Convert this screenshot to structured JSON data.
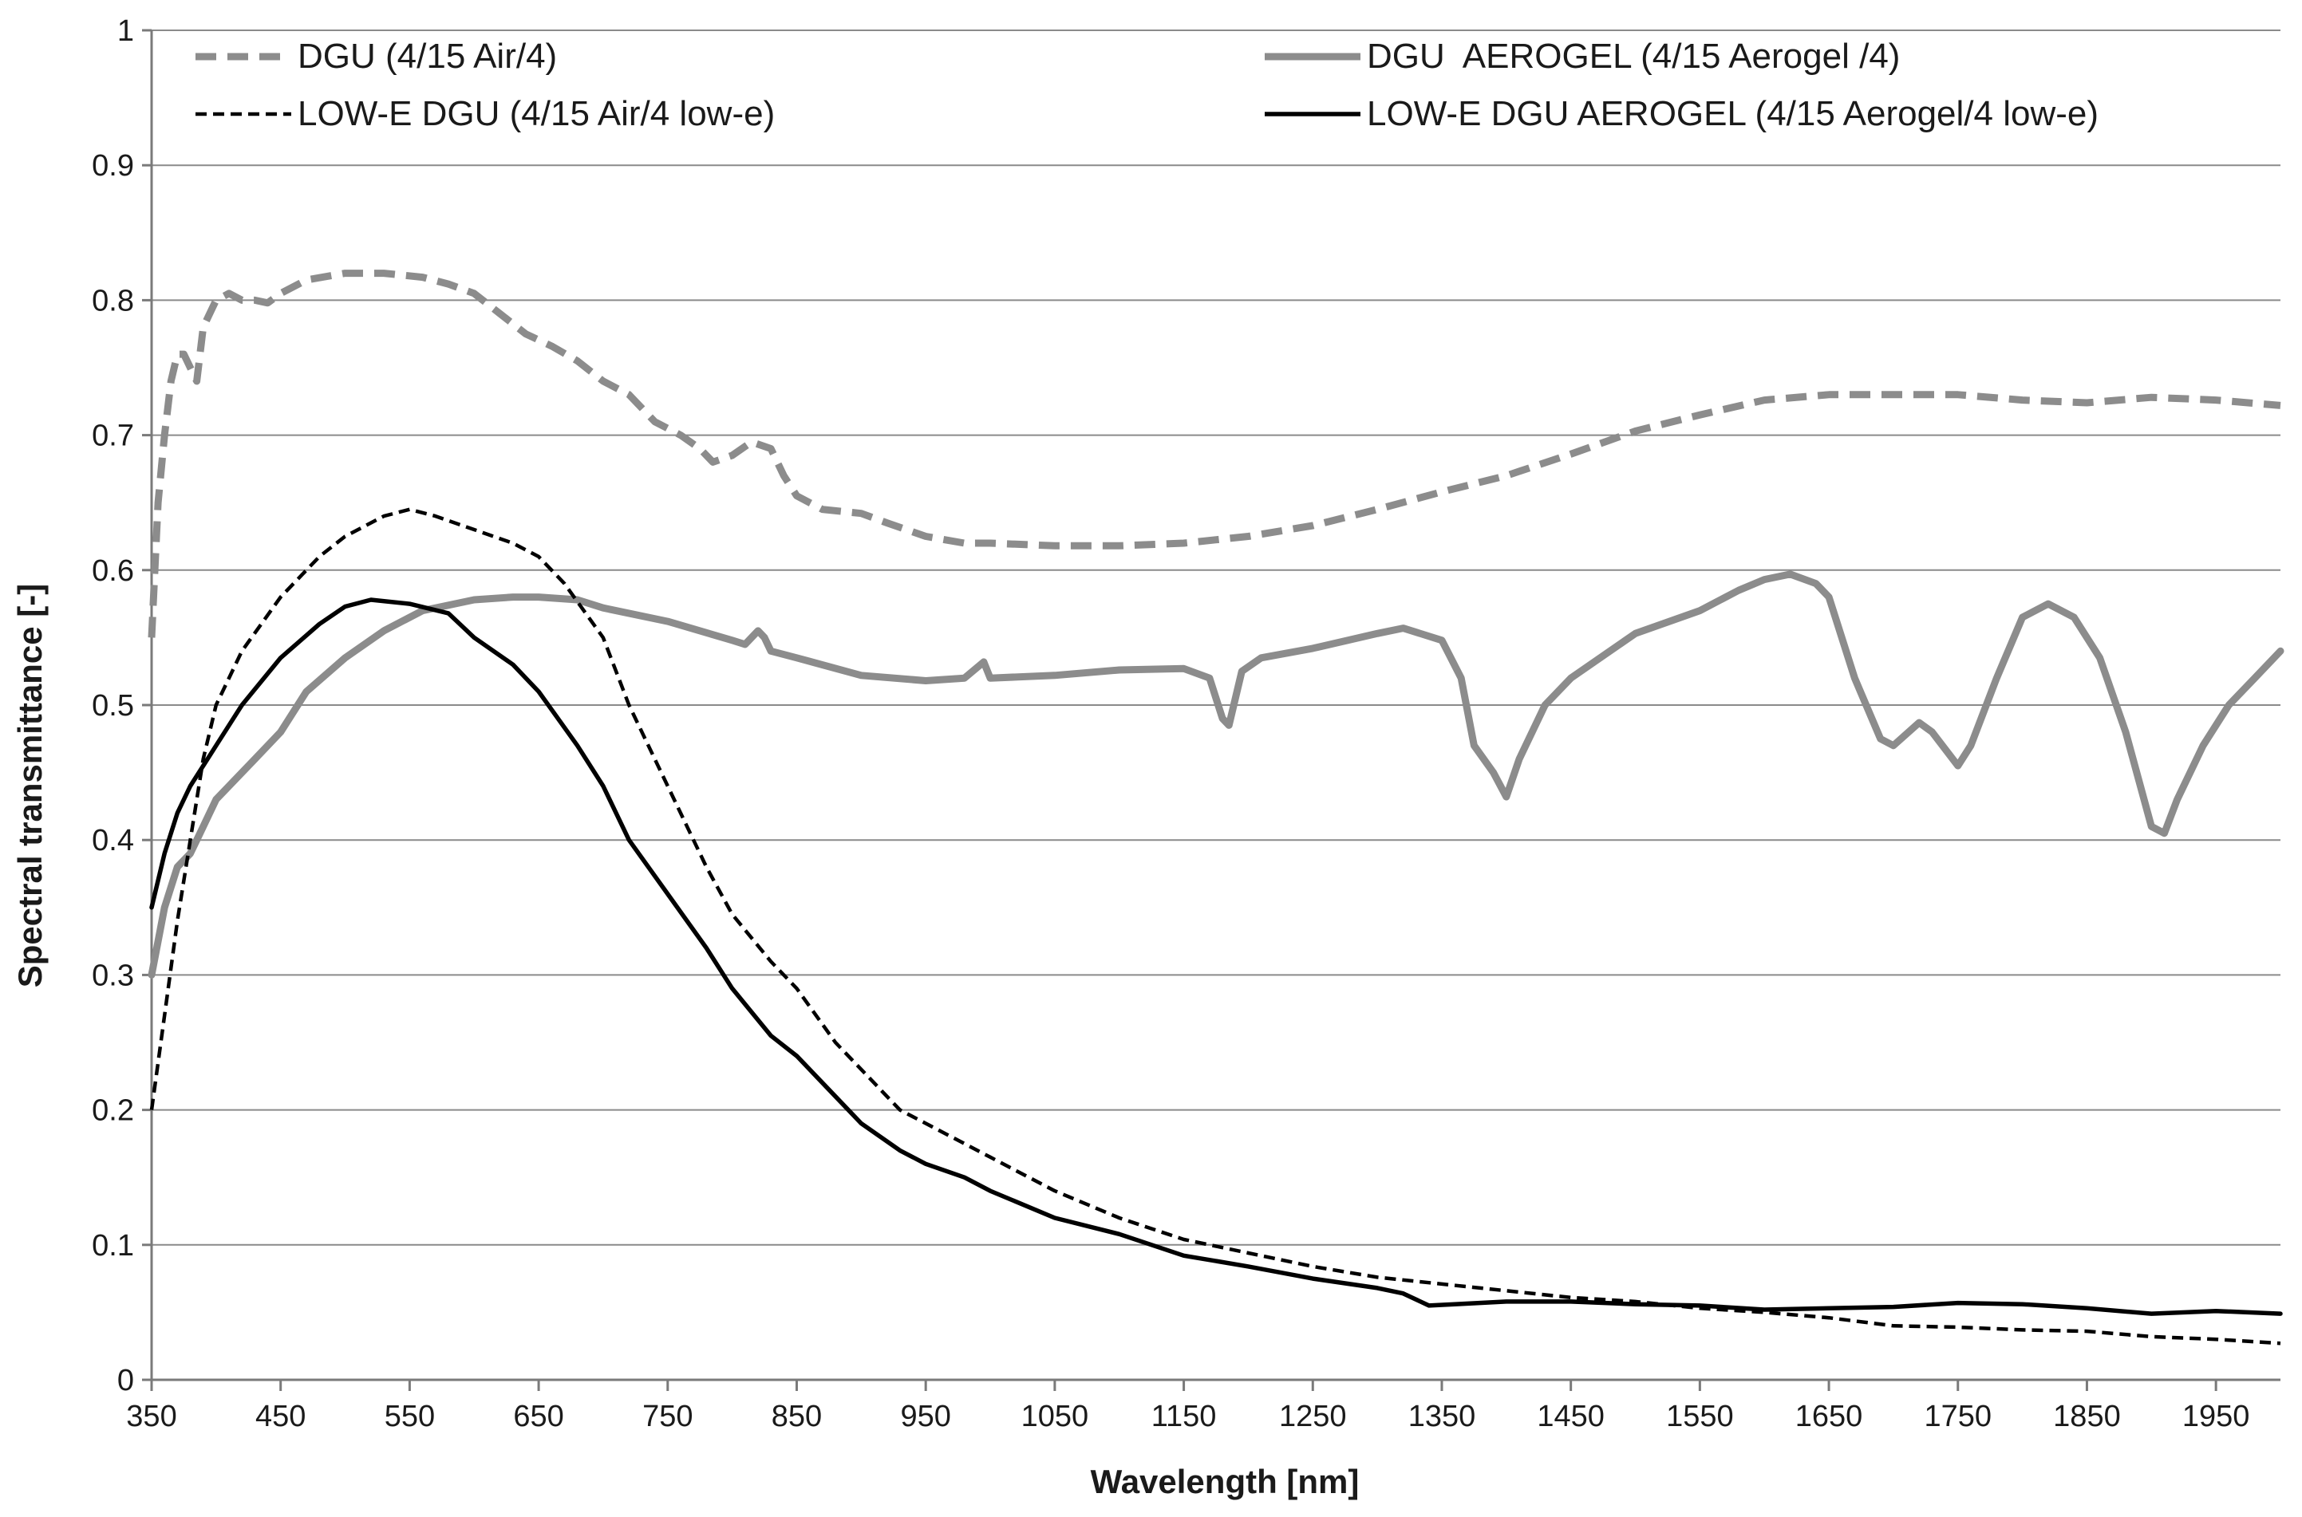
{
  "chart_data": {
    "type": "line",
    "title": "",
    "xlabel": "Wavelength [nm]",
    "ylabel": "Spectral transmittance [-]",
    "xlim": [
      350,
      2000
    ],
    "ylim": [
      0,
      1
    ],
    "grid": "horizontal",
    "legend_position": "top",
    "x_ticks": [
      350,
      450,
      550,
      650,
      750,
      850,
      950,
      1050,
      1150,
      1250,
      1350,
      1450,
      1550,
      1650,
      1750,
      1850,
      1950
    ],
    "x_tick_labels": [
      "350",
      "450",
      "550",
      "650",
      "750",
      "850",
      "950",
      "1050",
      "1150",
      "1250",
      "1350",
      "1450",
      "1550",
      "1650",
      "1750",
      "1850",
      "1950"
    ],
    "y_ticks": [
      0,
      0.1,
      0.2,
      0.3,
      0.4,
      0.5,
      0.6,
      0.7,
      0.8,
      0.9,
      1
    ],
    "y_tick_labels": [
      "0",
      "0.1",
      "0.2",
      "0.3",
      "0.4",
      "0.5",
      "0.6",
      "0.7",
      "0.8",
      "0.9",
      "1"
    ],
    "series": [
      {
        "name": "DGU (4/15 Air/4)",
        "color": "#8c8c8c",
        "style": "dashed-thick",
        "points": [
          [
            350,
            0.55
          ],
          [
            355,
            0.65
          ],
          [
            360,
            0.7
          ],
          [
            365,
            0.74
          ],
          [
            370,
            0.76
          ],
          [
            375,
            0.76
          ],
          [
            380,
            0.75
          ],
          [
            385,
            0.74
          ],
          [
            390,
            0.78
          ],
          [
            400,
            0.8
          ],
          [
            410,
            0.805
          ],
          [
            420,
            0.8
          ],
          [
            430,
            0.8
          ],
          [
            440,
            0.798
          ],
          [
            450,
            0.805
          ],
          [
            470,
            0.815
          ],
          [
            500,
            0.82
          ],
          [
            530,
            0.82
          ],
          [
            560,
            0.817
          ],
          [
            580,
            0.812
          ],
          [
            600,
            0.805
          ],
          [
            620,
            0.79
          ],
          [
            640,
            0.775
          ],
          [
            660,
            0.766
          ],
          [
            680,
            0.755
          ],
          [
            700,
            0.74
          ],
          [
            720,
            0.73
          ],
          [
            740,
            0.71
          ],
          [
            760,
            0.7
          ],
          [
            775,
            0.69
          ],
          [
            785,
            0.68
          ],
          [
            800,
            0.685
          ],
          [
            815,
            0.695
          ],
          [
            830,
            0.69
          ],
          [
            840,
            0.67
          ],
          [
            850,
            0.655
          ],
          [
            870,
            0.645
          ],
          [
            900,
            0.642
          ],
          [
            920,
            0.635
          ],
          [
            950,
            0.625
          ],
          [
            980,
            0.62
          ],
          [
            1000,
            0.62
          ],
          [
            1050,
            0.618
          ],
          [
            1100,
            0.618
          ],
          [
            1150,
            0.62
          ],
          [
            1200,
            0.625
          ],
          [
            1250,
            0.633
          ],
          [
            1300,
            0.645
          ],
          [
            1350,
            0.658
          ],
          [
            1400,
            0.67
          ],
          [
            1450,
            0.686
          ],
          [
            1500,
            0.703
          ],
          [
            1550,
            0.715
          ],
          [
            1600,
            0.726
          ],
          [
            1650,
            0.73
          ],
          [
            1700,
            0.73
          ],
          [
            1750,
            0.73
          ],
          [
            1800,
            0.726
          ],
          [
            1850,
            0.724
          ],
          [
            1900,
            0.728
          ],
          [
            1950,
            0.726
          ],
          [
            2000,
            0.722
          ]
        ]
      },
      {
        "name": "DGU  AEROGEL (4/15 Aerogel /4)",
        "color": "#8c8c8c",
        "style": "solid-thick",
        "points": [
          [
            350,
            0.3
          ],
          [
            360,
            0.35
          ],
          [
            370,
            0.38
          ],
          [
            380,
            0.39
          ],
          [
            390,
            0.41
          ],
          [
            400,
            0.43
          ],
          [
            410,
            0.44
          ],
          [
            430,
            0.46
          ],
          [
            450,
            0.48
          ],
          [
            470,
            0.51
          ],
          [
            500,
            0.535
          ],
          [
            530,
            0.555
          ],
          [
            560,
            0.57
          ],
          [
            600,
            0.578
          ],
          [
            630,
            0.58
          ],
          [
            650,
            0.58
          ],
          [
            680,
            0.578
          ],
          [
            700,
            0.572
          ],
          [
            750,
            0.562
          ],
          [
            800,
            0.548
          ],
          [
            810,
            0.545
          ],
          [
            820,
            0.555
          ],
          [
            825,
            0.55
          ],
          [
            830,
            0.54
          ],
          [
            850,
            0.535
          ],
          [
            900,
            0.522
          ],
          [
            950,
            0.518
          ],
          [
            980,
            0.52
          ],
          [
            995,
            0.532
          ],
          [
            1000,
            0.52
          ],
          [
            1050,
            0.522
          ],
          [
            1100,
            0.526
          ],
          [
            1150,
            0.527
          ],
          [
            1170,
            0.52
          ],
          [
            1180,
            0.49
          ],
          [
            1185,
            0.485
          ],
          [
            1195,
            0.525
          ],
          [
            1210,
            0.535
          ],
          [
            1250,
            0.542
          ],
          [
            1300,
            0.553
          ],
          [
            1320,
            0.557
          ],
          [
            1350,
            0.548
          ],
          [
            1365,
            0.52
          ],
          [
            1375,
            0.47
          ],
          [
            1390,
            0.45
          ],
          [
            1400,
            0.432
          ],
          [
            1410,
            0.46
          ],
          [
            1430,
            0.5
          ],
          [
            1450,
            0.52
          ],
          [
            1500,
            0.553
          ],
          [
            1550,
            0.57
          ],
          [
            1580,
            0.585
          ],
          [
            1600,
            0.593
          ],
          [
            1620,
            0.597
          ],
          [
            1640,
            0.59
          ],
          [
            1650,
            0.58
          ],
          [
            1670,
            0.52
          ],
          [
            1690,
            0.475
          ],
          [
            1700,
            0.47
          ],
          [
            1720,
            0.487
          ],
          [
            1730,
            0.48
          ],
          [
            1750,
            0.455
          ],
          [
            1760,
            0.47
          ],
          [
            1780,
            0.52
          ],
          [
            1800,
            0.565
          ],
          [
            1820,
            0.575
          ],
          [
            1840,
            0.565
          ],
          [
            1860,
            0.535
          ],
          [
            1880,
            0.48
          ],
          [
            1900,
            0.41
          ],
          [
            1910,
            0.405
          ],
          [
            1920,
            0.43
          ],
          [
            1940,
            0.47
          ],
          [
            1960,
            0.5
          ],
          [
            1980,
            0.52
          ],
          [
            2000,
            0.54
          ]
        ]
      },
      {
        "name": "LOW-E DGU (4/15 Air/4 low-e)",
        "color": "#000000",
        "style": "dashed-thin",
        "points": [
          [
            350,
            0.2
          ],
          [
            360,
            0.27
          ],
          [
            370,
            0.34
          ],
          [
            380,
            0.4
          ],
          [
            390,
            0.46
          ],
          [
            400,
            0.5
          ],
          [
            420,
            0.54
          ],
          [
            450,
            0.58
          ],
          [
            480,
            0.61
          ],
          [
            500,
            0.625
          ],
          [
            530,
            0.64
          ],
          [
            550,
            0.645
          ],
          [
            570,
            0.64
          ],
          [
            600,
            0.63
          ],
          [
            630,
            0.62
          ],
          [
            650,
            0.61
          ],
          [
            670,
            0.59
          ],
          [
            700,
            0.55
          ],
          [
            720,
            0.5
          ],
          [
            750,
            0.44
          ],
          [
            780,
            0.38
          ],
          [
            800,
            0.345
          ],
          [
            830,
            0.31
          ],
          [
            850,
            0.29
          ],
          [
            880,
            0.25
          ],
          [
            900,
            0.23
          ],
          [
            930,
            0.2
          ],
          [
            950,
            0.19
          ],
          [
            980,
            0.175
          ],
          [
            1000,
            0.165
          ],
          [
            1050,
            0.14
          ],
          [
            1100,
            0.12
          ],
          [
            1150,
            0.104
          ],
          [
            1200,
            0.094
          ],
          [
            1250,
            0.084
          ],
          [
            1300,
            0.076
          ],
          [
            1350,
            0.071
          ],
          [
            1400,
            0.066
          ],
          [
            1450,
            0.061
          ],
          [
            1500,
            0.058
          ],
          [
            1550,
            0.053
          ],
          [
            1600,
            0.05
          ],
          [
            1650,
            0.046
          ],
          [
            1700,
            0.04
          ],
          [
            1750,
            0.039
          ],
          [
            1800,
            0.037
          ],
          [
            1850,
            0.036
          ],
          [
            1900,
            0.032
          ],
          [
            1950,
            0.03
          ],
          [
            2000,
            0.027
          ]
        ]
      },
      {
        "name": "LOW-E DGU AEROGEL (4/15 Aerogel/4 low-e)",
        "color": "#000000",
        "style": "solid-medium",
        "points": [
          [
            350,
            0.35
          ],
          [
            360,
            0.39
          ],
          [
            370,
            0.42
          ],
          [
            380,
            0.44
          ],
          [
            390,
            0.455
          ],
          [
            400,
            0.47
          ],
          [
            420,
            0.5
          ],
          [
            450,
            0.535
          ],
          [
            480,
            0.56
          ],
          [
            500,
            0.573
          ],
          [
            520,
            0.578
          ],
          [
            550,
            0.575
          ],
          [
            580,
            0.568
          ],
          [
            600,
            0.55
          ],
          [
            630,
            0.53
          ],
          [
            650,
            0.51
          ],
          [
            680,
            0.47
          ],
          [
            700,
            0.44
          ],
          [
            720,
            0.4
          ],
          [
            750,
            0.36
          ],
          [
            780,
            0.32
          ],
          [
            800,
            0.29
          ],
          [
            830,
            0.255
          ],
          [
            850,
            0.24
          ],
          [
            880,
            0.21
          ],
          [
            900,
            0.19
          ],
          [
            930,
            0.17
          ],
          [
            950,
            0.16
          ],
          [
            980,
            0.15
          ],
          [
            1000,
            0.14
          ],
          [
            1050,
            0.12
          ],
          [
            1100,
            0.108
          ],
          [
            1150,
            0.092
          ],
          [
            1200,
            0.084
          ],
          [
            1250,
            0.075
          ],
          [
            1300,
            0.068
          ],
          [
            1320,
            0.064
          ],
          [
            1340,
            0.055
          ],
          [
            1360,
            0.056
          ],
          [
            1400,
            0.058
          ],
          [
            1450,
            0.058
          ],
          [
            1500,
            0.056
          ],
          [
            1550,
            0.055
          ],
          [
            1600,
            0.052
          ],
          [
            1650,
            0.053
          ],
          [
            1700,
            0.054
          ],
          [
            1750,
            0.057
          ],
          [
            1800,
            0.056
          ],
          [
            1850,
            0.053
          ],
          [
            1900,
            0.049
          ],
          [
            1950,
            0.051
          ],
          [
            2000,
            0.049
          ]
        ]
      }
    ]
  }
}
